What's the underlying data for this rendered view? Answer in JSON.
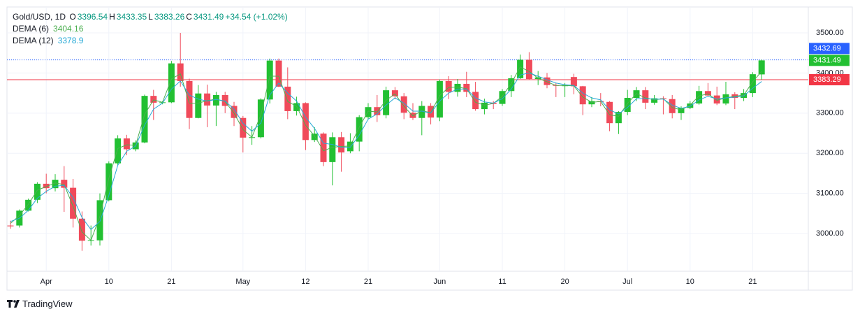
{
  "chart_data": {
    "type": "candlestick",
    "symbol": "Gold/USD, 1D",
    "ohlc_keys": [
      "O",
      "H",
      "L",
      "C"
    ],
    "change": "+34.54 (+1.02%)",
    "categories": [
      null,
      null,
      null,
      null,
      "Apr",
      null,
      null,
      null,
      null,
      null,
      null,
      "10",
      null,
      null,
      null,
      null,
      null,
      null,
      "21",
      null,
      null,
      null,
      null,
      null,
      null,
      null,
      "May",
      null,
      null,
      null,
      null,
      null,
      null,
      "12",
      null,
      null,
      null,
      null,
      null,
      null,
      "21",
      null,
      null,
      null,
      null,
      null,
      null,
      null,
      "Jun",
      null,
      null,
      null,
      null,
      null,
      null,
      "11",
      null,
      null,
      null,
      null,
      null,
      null,
      "20",
      null,
      null,
      null,
      null,
      null,
      null,
      "Jul",
      null,
      null,
      null,
      null,
      null,
      null,
      "10",
      null,
      null,
      null,
      null,
      null,
      null,
      "21",
      null
    ],
    "open": [
      3020,
      3020,
      3057,
      3084,
      3124,
      3113,
      3134,
      3114,
      3037,
      2982,
      2983,
      3083,
      3175,
      3237,
      3210,
      3227,
      3343,
      3326,
      3327,
      3424,
      3380,
      3288,
      3349,
      3319,
      3345,
      3318,
      3288,
      3239,
      3240,
      3334,
      3431,
      3366,
      3305,
      3325,
      3233,
      3249,
      3178,
      3240,
      3205,
      3229,
      3290,
      3315,
      3295,
      3357,
      3342,
      3301,
      3288,
      3318,
      3289,
      3380,
      3353,
      3373,
      3353,
      3310,
      3326,
      3323,
      3355,
      3387,
      3433,
      3385,
      3389,
      3370,
      3368,
      3390,
      3367,
      3322,
      3330,
      3328,
      3275,
      3303,
      3338,
      3357,
      3326,
      3337,
      3335,
      3300,
      3313,
      3324,
      3355,
      3344,
      3324,
      3347,
      3338,
      3350,
      3396.54
    ],
    "high": [
      3032,
      3060,
      3087,
      3128,
      3149,
      3148,
      3168,
      3136,
      3055,
      3020,
      3100,
      3180,
      3245,
      3246,
      3232,
      3346,
      3358,
      3330,
      3430,
      3500,
      3386,
      3370,
      3371,
      3353,
      3353,
      3328,
      3293,
      3268,
      3337,
      3436,
      3436,
      3414,
      3341,
      3327,
      3265,
      3252,
      3252,
      3253,
      3250,
      3295,
      3325,
      3345,
      3366,
      3365,
      3350,
      3325,
      3330,
      3325,
      3384,
      3392,
      3385,
      3403,
      3378,
      3336,
      3330,
      3360,
      3395,
      3446,
      3452,
      3405,
      3400,
      3375,
      3375,
      3398,
      3368,
      3340,
      3350,
      3330,
      3305,
      3358,
      3365,
      3365,
      3345,
      3342,
      3345,
      3317,
      3330,
      3368,
      3375,
      3366,
      3378,
      3352,
      3360,
      3402,
      3433.35
    ],
    "low": [
      3012,
      3015,
      3055,
      3076,
      3100,
      3105,
      3054,
      3015,
      2957,
      2970,
      2970,
      3080,
      3170,
      3195,
      3205,
      3225,
      3283,
      3322,
      3325,
      3366,
      3260,
      3287,
      3265,
      3268,
      3300,
      3268,
      3202,
      3221,
      3237,
      3324,
      3365,
      3285,
      3294,
      3208,
      3228,
      3168,
      3120,
      3154,
      3200,
      3205,
      3285,
      3278,
      3287,
      3335,
      3285,
      3283,
      3245,
      3272,
      3280,
      3335,
      3341,
      3340,
      3306,
      3297,
      3310,
      3318,
      3340,
      3385,
      3383,
      3370,
      3362,
      3340,
      3340,
      3347,
      3295,
      3315,
      3317,
      3255,
      3248,
      3295,
      3330,
      3310,
      3321,
      3297,
      3287,
      3283,
      3310,
      3321,
      3341,
      3320,
      3320,
      3310,
      3330,
      3340,
      3383.26
    ],
    "close": [
      3018,
      3057,
      3084,
      3124,
      3113,
      3134,
      3114,
      3037,
      2982,
      2983,
      3083,
      3175,
      3237,
      3210,
      3227,
      3343,
      3326,
      3327,
      3424,
      3380,
      3288,
      3349,
      3319,
      3345,
      3318,
      3288,
      3239,
      3240,
      3334,
      3431,
      3366,
      3305,
      3325,
      3233,
      3249,
      3178,
      3240,
      3202,
      3229,
      3290,
      3315,
      3295,
      3357,
      3342,
      3301,
      3288,
      3318,
      3289,
      3380,
      3353,
      3373,
      3353,
      3310,
      3326,
      3323,
      3355,
      3387,
      3433,
      3385,
      3389,
      3370,
      3368,
      3369,
      3367,
      3322,
      3330,
      3328,
      3275,
      3303,
      3338,
      3357,
      3326,
      3337,
      3335,
      3300,
      3313,
      3324,
      3355,
      3344,
      3324,
      3347,
      3338,
      3350,
      3397,
      3431.49
    ],
    "up_color": "#22c032",
    "down_color": "#f04a5a",
    "series": [
      {
        "name": "DEMA (6)",
        "color": "#4caf50",
        "values": [
          3025,
          3045,
          3073,
          3108,
          3117,
          3126,
          3122,
          3068,
          3004,
          2983,
          3043,
          3138,
          3212,
          3221,
          3220,
          3297,
          3333,
          3327,
          3385,
          3398,
          3325,
          3325,
          3331,
          3335,
          3329,
          3300,
          3259,
          3240,
          3296,
          3392,
          3392,
          3329,
          3317,
          3270,
          3243,
          3206,
          3215,
          3217,
          3218,
          3265,
          3305,
          3303,
          3332,
          3348,
          3317,
          3293,
          3306,
          3301,
          3344,
          3364,
          3365,
          3361,
          3327,
          3320,
          3324,
          3342,
          3374,
          3415,
          3404,
          3387,
          3378,
          3369,
          3369,
          3368,
          3340,
          3327,
          3329,
          3296,
          3292,
          3324,
          3349,
          3338,
          3333,
          3336,
          3314,
          3308,
          3320,
          3343,
          3348,
          3332,
          3338,
          3342,
          3345,
          3378,
          3404.16
        ]
      },
      {
        "name": "DEMA (12)",
        "color": "#26a9d6",
        "values": [
          3030,
          3038,
          3058,
          3088,
          3105,
          3118,
          3120,
          3090,
          3040,
          3010,
          3030,
          3095,
          3170,
          3205,
          3218,
          3270,
          3310,
          3325,
          3360,
          3380,
          3345,
          3335,
          3330,
          3334,
          3330,
          3310,
          3275,
          3255,
          3275,
          3345,
          3375,
          3350,
          3330,
          3290,
          3262,
          3225,
          3222,
          3215,
          3215,
          3245,
          3285,
          3298,
          3320,
          3338,
          3325,
          3305,
          3305,
          3300,
          3330,
          3350,
          3360,
          3360,
          3338,
          3328,
          3325,
          3336,
          3360,
          3395,
          3400,
          3392,
          3383,
          3375,
          3371,
          3369,
          3350,
          3338,
          3333,
          3308,
          3298,
          3314,
          3336,
          3336,
          3335,
          3335,
          3320,
          3312,
          3317,
          3333,
          3342,
          3335,
          3338,
          3340,
          3343,
          3362,
          3378.9
        ]
      }
    ],
    "ylim": [
      2906,
      3564.5
    ],
    "yticks": [
      {
        "value": 3000,
        "label": "3000.00"
      },
      {
        "value": 3100,
        "label": "3100.00"
      },
      {
        "value": 3200,
        "label": "3200.00"
      },
      {
        "value": 3300,
        "label": "3300.00"
      },
      {
        "value": 3400,
        "label": "3400.00"
      },
      {
        "value": 3500,
        "label": "3500.00"
      }
    ],
    "grid": true,
    "price_lines": [
      {
        "value": 3432.69,
        "color": "#2962ff",
        "dashed": true
      },
      {
        "value": 3383.29,
        "color": "#f23645",
        "dashed": false
      }
    ],
    "brand": "TradingView"
  }
}
